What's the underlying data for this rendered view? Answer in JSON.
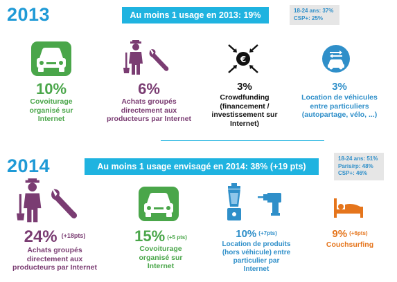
{
  "section_2013": {
    "year": "2013",
    "banner": "Au moins 1 usage en 2013: 19%",
    "box_lines": [
      "18-24 ans: 37%",
      "CSP+: 25%"
    ],
    "items": [
      {
        "pct": "10%",
        "label_lines": [
          "Covoiturage",
          "organisé sur",
          "Internet"
        ]
      },
      {
        "pct": "6%",
        "label_lines": [
          "Achats groupés",
          "directement aux",
          "producteurs par Internet"
        ]
      },
      {
        "pct": "3%",
        "label_lines": [
          "Crowdfunding",
          "(financement /",
          "investissement sur",
          "Internet)"
        ]
      },
      {
        "pct": "3%",
        "label_lines": [
          "Location de véhicules",
          "entre particuliers",
          "(autopartage, vélo, ...)"
        ]
      }
    ]
  },
  "section_2014": {
    "year": "2014",
    "banner": "Au moins 1 usage envisagé en 2014: 38% (+19 pts)",
    "box_lines": [
      "18-24 ans: 51%",
      "Paris/rp: 48%",
      "CSP+: 46%"
    ],
    "items": [
      {
        "pct": "24%",
        "delta": "(+18pts)",
        "label_lines": [
          "Achats groupés",
          "directement aux",
          "producteurs par Internet"
        ]
      },
      {
        "pct": "15%",
        "delta": "(+5 pts)",
        "label_lines": [
          "Covoiturage",
          "organisé sur",
          "Internet"
        ]
      },
      {
        "pct": "10%",
        "delta": "(+7pts)",
        "label_lines": [
          "Location de produits",
          "(hors véhicule) entre",
          "particulier par",
          "Internet"
        ]
      },
      {
        "pct": "9%",
        "delta": "(+6pts)",
        "label_lines": [
          "Couchsurfing"
        ]
      }
    ]
  },
  "colors": {
    "banner": "#1fb3e0",
    "year_2013": "#1f9ad6",
    "year_2014": "#1f9ad6",
    "green": "#4aa64a",
    "purple": "#7a3c72",
    "blue": "#2f8fc9",
    "orange": "#e5751c",
    "box_bg": "#e6e6e6"
  },
  "icons": [
    "car-icon",
    "farmer-icon",
    "wrench-icon",
    "crowdfunding-icon",
    "car-sharing-icon",
    "blender-icon",
    "drill-icon",
    "bed-icon"
  ]
}
